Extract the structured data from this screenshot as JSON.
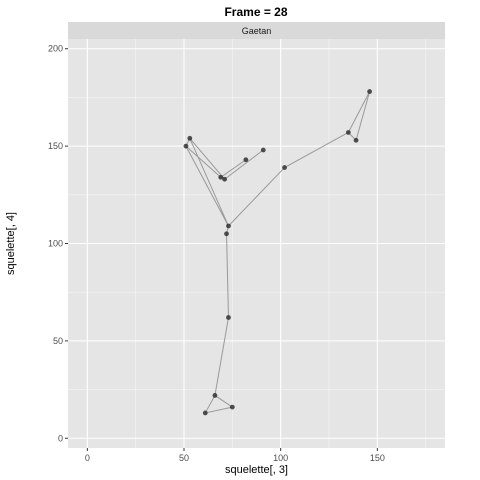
{
  "chart_data": {
    "type": "scatter",
    "title": "Frame = 28",
    "facet_label": "Gaetan",
    "xlabel": "squelette[, 3]",
    "ylabel": "squelette[, 4]",
    "xlim": [
      -10,
      185
    ],
    "ylim": [
      -5,
      205
    ],
    "x_ticks": [
      0,
      50,
      100,
      150
    ],
    "y_ticks": [
      0,
      50,
      100,
      150,
      200
    ],
    "grid": true,
    "panel_bg": "#e5e5e5",
    "strip_bg": "#d9d9d9",
    "grid_major_color": "#ffffff",
    "line_color": "#999999",
    "point_color": "#333333",
    "points": [
      {
        "x": 61,
        "y": 13
      },
      {
        "x": 66,
        "y": 22
      },
      {
        "x": 75,
        "y": 16
      },
      {
        "x": 73,
        "y": 62
      },
      {
        "x": 72,
        "y": 105
      },
      {
        "x": 73,
        "y": 109
      },
      {
        "x": 51,
        "y": 150
      },
      {
        "x": 53,
        "y": 154
      },
      {
        "x": 69,
        "y": 134
      },
      {
        "x": 71,
        "y": 133
      },
      {
        "x": 82,
        "y": 143
      },
      {
        "x": 91,
        "y": 148
      },
      {
        "x": 102,
        "y": 139
      },
      {
        "x": 135,
        "y": 157
      },
      {
        "x": 139,
        "y": 153
      },
      {
        "x": 146,
        "y": 178
      }
    ],
    "segments": [
      [
        0,
        1
      ],
      [
        1,
        2
      ],
      [
        2,
        0
      ],
      [
        1,
        3
      ],
      [
        3,
        4
      ],
      [
        4,
        5
      ],
      [
        5,
        6
      ],
      [
        6,
        7
      ],
      [
        7,
        5
      ],
      [
        6,
        8
      ],
      [
        8,
        10
      ],
      [
        7,
        9
      ],
      [
        9,
        11
      ],
      [
        5,
        12
      ],
      [
        12,
        13
      ],
      [
        13,
        14
      ],
      [
        14,
        15
      ],
      [
        15,
        13
      ]
    ]
  }
}
